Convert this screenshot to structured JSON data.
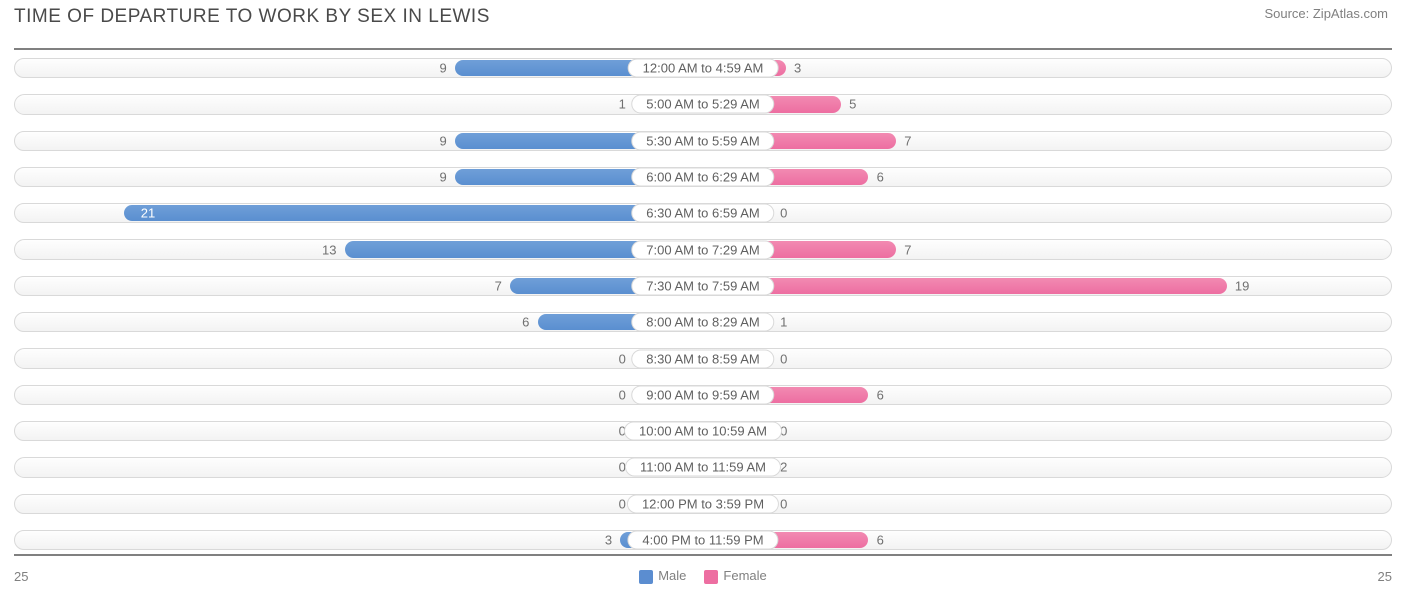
{
  "header": {
    "title": "TIME OF DEPARTURE TO WORK BY SEX IN LEWIS",
    "source": "Source: ZipAtlas.com"
  },
  "chart": {
    "type": "diverging-bar",
    "axis_max": 25,
    "axis_left_label": "25",
    "axis_right_label": "25",
    "min_bar_width_pct": 5.0,
    "track_bg_top": "#fefefe",
    "track_bg_bottom": "#f3f3f3",
    "track_border": "#d9d9d9",
    "value_label_color": "#707070",
    "value_label_inside_color": "#ffffff",
    "category_label_bg": "#ffffff",
    "category_label_border": "#d9d9d9",
    "series": {
      "male": {
        "label": "Male",
        "color": "#6f9fd8",
        "swatch_color": "#5b8dd0"
      },
      "female": {
        "label": "Female",
        "color": "#f28ab2",
        "swatch_color": "#ed6ea1"
      }
    },
    "rows": [
      {
        "label": "12:00 AM to 4:59 AM",
        "male": 9,
        "female": 3
      },
      {
        "label": "5:00 AM to 5:29 AM",
        "male": 1,
        "female": 5
      },
      {
        "label": "5:30 AM to 5:59 AM",
        "male": 9,
        "female": 7
      },
      {
        "label": "6:00 AM to 6:29 AM",
        "male": 9,
        "female": 6
      },
      {
        "label": "6:30 AM to 6:59 AM",
        "male": 21,
        "female": 0
      },
      {
        "label": "7:00 AM to 7:29 AM",
        "male": 13,
        "female": 7
      },
      {
        "label": "7:30 AM to 7:59 AM",
        "male": 7,
        "female": 19
      },
      {
        "label": "8:00 AM to 8:29 AM",
        "male": 6,
        "female": 1
      },
      {
        "label": "8:30 AM to 8:59 AM",
        "male": 0,
        "female": 0
      },
      {
        "label": "9:00 AM to 9:59 AM",
        "male": 0,
        "female": 6
      },
      {
        "label": "10:00 AM to 10:59 AM",
        "male": 0,
        "female": 0
      },
      {
        "label": "11:00 AM to 11:59 AM",
        "male": 0,
        "female": 2
      },
      {
        "label": "12:00 PM to 3:59 PM",
        "male": 0,
        "female": 0
      },
      {
        "label": "4:00 PM to 11:59 PM",
        "male": 3,
        "female": 6
      }
    ]
  }
}
